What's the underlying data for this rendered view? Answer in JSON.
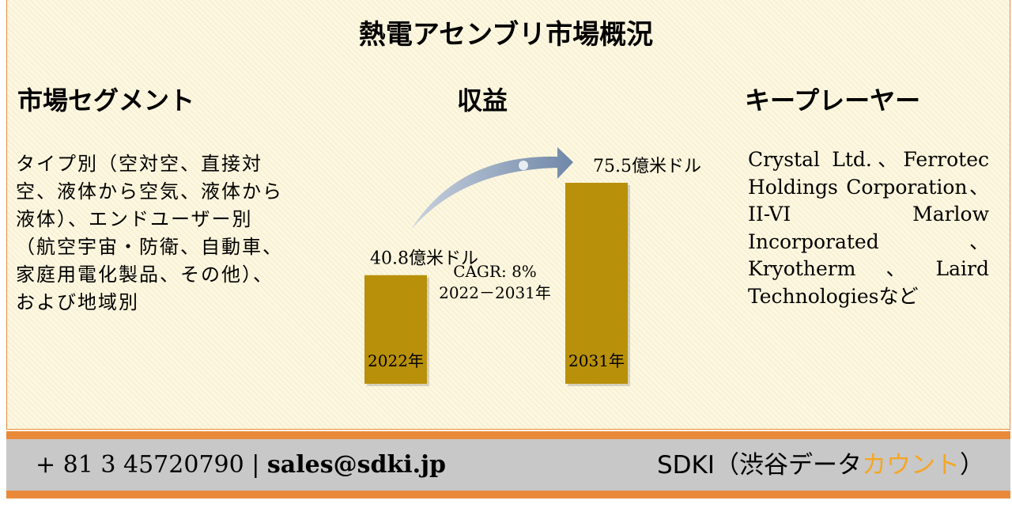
{
  "title": "熱電アセンブリ市場概況",
  "segments": {
    "heading": "市場セグメント",
    "text": "タイプ別（空対空、直接対空、液体から空気、液体から液体）、エンドユーザー別（航空宇宙・防衛、自動車、家庭用電化製品、その他）、および地域別"
  },
  "revenue": {
    "heading": "収益"
  },
  "chart_data": {
    "type": "bar",
    "categories": [
      "2022年",
      "2031年"
    ],
    "values": [
      40.8,
      75.5
    ],
    "value_labels": [
      "40.8億米ドル",
      "75.5億米ドル"
    ],
    "color": "#b8900a",
    "annotations": [
      "CAGR: 8%",
      "2022－2031年"
    ]
  },
  "players": {
    "heading": "キープレーヤー",
    "text": "Crystal Ltd.、Ferrotec Holdings Corporation、II-VI Marlow Incorporated、Kryotherm、Laird Technologiesなど"
  },
  "footer": {
    "phone": "+ 81 3 45720790",
    "separator": "|",
    "email": "sales@sdki.jp",
    "brand": "SDKI（渋谷データ",
    "brand_accent": "カウント",
    "brand_end": "）"
  }
}
